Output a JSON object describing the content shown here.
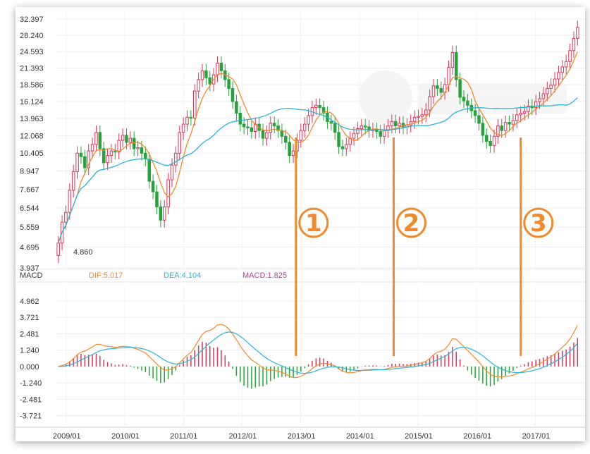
{
  "chart_data": [
    {
      "type": "candlestick",
      "title": "",
      "price_ticks": [
        "32.397",
        "28.240",
        "24.593",
        "21.393",
        "18.586",
        "16.124",
        "13.963",
        "12.068",
        "10.405",
        "8.947",
        "7.667",
        "6.544",
        "5.559",
        "4.695",
        "3.937"
      ],
      "scale": "log",
      "ylim": [
        3.937,
        32.397
      ],
      "low_annotation": "4.860",
      "x_ticks": [
        "2009/01",
        "2010/01",
        "2011/01",
        "2012/01",
        "2013/01",
        "2014/01",
        "2015/01",
        "2016/01",
        "2017/01"
      ],
      "candles_monthly_close": [
        4.86,
        5.8,
        6.3,
        7.6,
        8.9,
        10.4,
        10.1,
        9.2,
        10.6,
        11.2,
        12.4,
        10.8,
        9.6,
        10.2,
        10.6,
        10.5,
        11.6,
        12.1,
        11.4,
        11.8,
        10.8,
        10.9,
        10.4,
        9.9,
        8.2,
        7.5,
        6.6,
        5.9,
        6.6,
        8.3,
        9.4,
        10.4,
        12.4,
        13.3,
        14.1,
        14.0,
        17.6,
        19.4,
        20.9,
        19.7,
        18.7,
        20.2,
        22.3,
        20.9,
        19.4,
        18.0,
        16.1,
        14.6,
        13.3,
        13.0,
        12.9,
        12.5,
        13.3,
        12.6,
        11.8,
        12.4,
        13.4,
        13.1,
        12.6,
        12.0,
        11.4,
        10.2,
        10.6,
        11.6,
        12.6,
        13.3,
        14.3,
        15.3,
        15.6,
        15.3,
        14.6,
        13.6,
        13.4,
        12.4,
        11.0,
        10.8,
        11.2,
        11.8,
        12.3,
        12.8,
        13.1,
        13.0,
        12.6,
        12.7,
        12.5,
        12.0,
        12.6,
        13.1,
        13.6,
        13.1,
        13.4,
        13.0,
        13.2,
        13.6,
        14.1,
        14.2,
        14.4,
        15.0,
        16.8,
        18.4,
        18.0,
        17.4,
        18.6,
        21.5,
        24.4,
        19.4,
        16.7,
        16.2,
        15.6,
        14.9,
        14.3,
        13.4,
        12.1,
        11.5,
        11.1,
        12.0,
        13.1,
        12.6,
        13.5,
        13.3,
        13.7,
        14.4,
        14.6,
        14.8,
        15.5,
        15.3,
        16.1,
        16.5,
        17.2,
        18.0,
        18.5,
        19.5,
        20.6,
        21.6,
        22.6,
        24.8,
        27.5,
        30.2
      ]
    },
    {
      "type": "line",
      "indicator": "MACD",
      "legend": {
        "name": "MACD",
        "dif_label": "DIF:5.017",
        "dea_label": "DEA:4.104",
        "macd_label": "MACD:1.825"
      },
      "y_ticks": [
        "4.962",
        "3.721",
        "2.481",
        "1.240",
        "0.000",
        "-1.240",
        "-2.481",
        "-3.721"
      ],
      "ylim": [
        -4.6,
        5.6
      ],
      "colors": {
        "dif": "#f08a2c",
        "dea": "#26b6d6",
        "up": "#d9365a",
        "down": "#26a33a"
      }
    }
  ],
  "markers": [
    {
      "label": "1",
      "date": "2012/12"
    },
    {
      "label": "2",
      "date": "2014/08"
    },
    {
      "label": "3",
      "date": "2016/10"
    }
  ],
  "colors": {
    "accent": "#f08a2c",
    "up": "#d9365a",
    "down": "#26a33a"
  },
  "watermark_icon": "brand-logo-icon"
}
